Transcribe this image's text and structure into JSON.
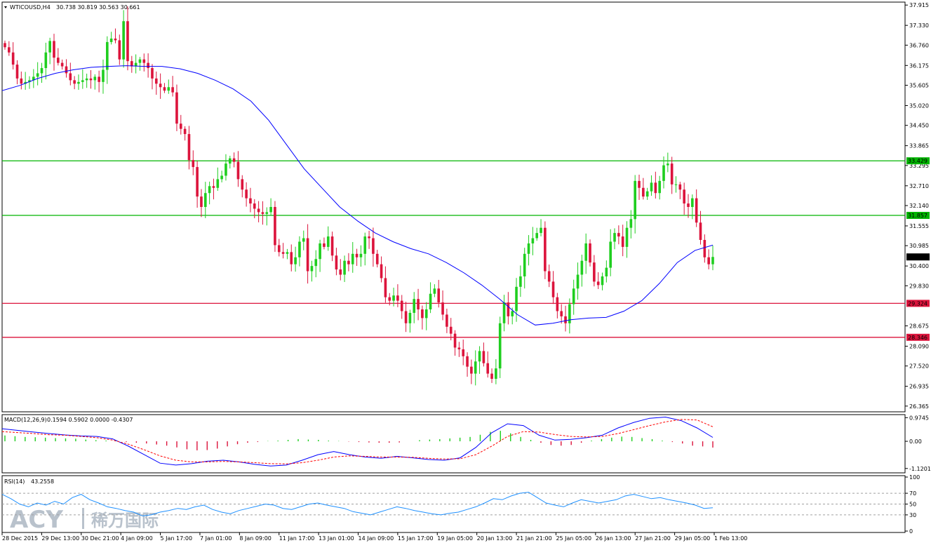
{
  "colors": {
    "bull": "#1fce1f",
    "bear": "#dc143c",
    "ma": "#0000ff",
    "support": "#dc143c",
    "resistance": "#00b400",
    "macd_signal": "#ff0000",
    "watermark": "#b9c2cc"
  },
  "chart_data": [
    {
      "type": "candlestick",
      "title": "WTICOUSD,H4",
      "ohlc_readout": [
        "30.738",
        "30.819",
        "30.563",
        "30.661"
      ],
      "current_price": "30.661",
      "ylim": [
        26.2,
        38.0
      ],
      "y_ticks": [
        "37.915",
        "37.330",
        "36.760",
        "36.175",
        "35.605",
        "35.020",
        "34.450",
        "33.865",
        "33.295",
        "32.710",
        "32.140",
        "31.555",
        "30.985",
        "30.400",
        "29.830",
        "28.675",
        "28.090",
        "27.520",
        "26.935",
        "26.365"
      ],
      "x_labels": [
        "28 Dec 2015",
        "29 Dec 13:00",
        "30 Dec 21:00",
        "4 Jan 09:00",
        "5 Jan 17:00",
        "7 Jan 01:00",
        "8 Jan 09:00",
        "11 Jan 17:00",
        "13 Jan 01:00",
        "14 Jan 09:00",
        "15 Jan 17:00",
        "19 Jan 05:00",
        "20 Jan 13:00",
        "21 Jan 21:00",
        "25 Jan 05:00",
        "26 Jan 13:00",
        "27 Jan 21:00",
        "29 Jan 05:00",
        "1 Feb 13:00"
      ],
      "levels": [
        {
          "value": 33.429,
          "label": "33.429",
          "role": "resistance"
        },
        {
          "value": 31.857,
          "label": "31.857",
          "role": "resistance"
        },
        {
          "value": 29.324,
          "label": "29.324",
          "role": "support"
        },
        {
          "value": 28.346,
          "label": "28.346",
          "role": "support"
        }
      ],
      "candles_close": [
        36.7,
        36.55,
        36.2,
        35.8,
        35.65,
        35.7,
        35.75,
        35.85,
        35.95,
        36.1,
        36.55,
        36.88,
        36.4,
        36.25,
        36.15,
        35.95,
        35.75,
        35.65,
        35.7,
        35.75,
        35.8,
        35.75,
        35.85,
        35.7,
        36.05,
        36.85,
        36.95,
        36.9,
        36.35,
        37.45,
        36.3,
        36.15,
        36.25,
        36.35,
        36.25,
        36.1,
        35.8,
        35.65,
        35.55,
        35.45,
        35.55,
        35.4,
        34.5,
        34.35,
        34.2,
        33.45,
        33.25,
        32.4,
        32.1,
        32.5,
        32.7,
        32.65,
        32.9,
        33.0,
        33.35,
        33.5,
        33.4,
        32.9,
        32.6,
        32.35,
        32.2,
        32.05,
        31.95,
        31.9,
        31.95,
        32.1,
        31.0,
        30.8,
        30.75,
        30.8,
        30.45,
        30.65,
        31.1,
        31.2,
        30.25,
        30.4,
        30.6,
        31.05,
        30.95,
        31.25,
        30.7,
        30.3,
        30.15,
        30.55,
        30.45,
        30.75,
        30.65,
        30.75,
        31.25,
        31.2,
        30.75,
        30.45,
        30.05,
        29.5,
        29.4,
        29.55,
        29.4,
        29.1,
        28.75,
        29.05,
        29.45,
        29.15,
        28.9,
        29.15,
        29.6,
        29.75,
        29.35,
        29.0,
        28.65,
        28.45,
        28.05,
        28.0,
        27.8,
        27.5,
        27.3,
        27.65,
        27.95,
        27.6,
        27.3,
        27.15,
        27.45,
        28.75,
        29.35,
        28.95,
        29.1,
        29.8,
        30.1,
        30.75,
        31.05,
        31.2,
        31.35,
        31.5,
        30.25,
        29.95,
        29.5,
        29.1,
        28.95,
        28.75,
        29.3,
        29.75,
        30.15,
        30.55,
        31.05,
        30.5,
        29.95,
        29.85,
        30.1,
        30.35,
        31.1,
        31.35,
        31.25,
        30.95,
        31.5,
        31.75,
        32.85,
        32.65,
        32.4,
        32.55,
        32.8,
        32.5,
        32.85,
        33.3,
        33.35,
        32.75,
        32.75,
        32.6,
        32.2,
        32.1,
        32.35,
        31.65,
        31.15,
        30.65,
        30.45,
        30.66
      ],
      "ma_line": [
        35.45,
        35.6,
        35.8,
        35.95,
        36.05,
        36.12,
        36.15,
        36.17,
        36.15,
        36.15,
        36.08,
        35.95,
        35.75,
        35.5,
        35.15,
        34.6,
        33.9,
        33.2,
        32.65,
        32.1,
        31.7,
        31.35,
        31.1,
        30.9,
        30.75,
        30.5,
        30.2,
        29.85,
        29.45,
        29.0,
        28.7,
        28.75,
        28.85,
        28.9,
        28.92,
        29.1,
        29.4,
        29.9,
        30.5,
        30.85,
        31.0
      ],
      "ma_period": "",
      "ohlc_note": ""
    },
    {
      "type": "line",
      "title": "MACD(12,26,9)",
      "readout": [
        "0.1594",
        "0.5902",
        "0.0000",
        "-0.4307"
      ],
      "ylim": [
        -1.3,
        1.1
      ],
      "y_ticks": [
        "0.9745",
        "0.00",
        "-1.1201"
      ],
      "histogram": [
        0.4,
        0.35,
        0.3,
        0.28,
        0.25,
        0.22,
        0.2,
        0.18,
        0.12,
        0.08,
        0.05,
        0.02,
        -0.05,
        -0.1,
        -0.15,
        -0.22,
        -0.3,
        -0.42,
        -0.55,
        -0.62,
        -0.6,
        -0.5,
        -0.35,
        -0.2,
        -0.1,
        -0.05,
        0.02,
        0.05,
        0.1,
        0.15,
        0.12,
        0.1,
        0.05,
        0.02,
        -0.02,
        -0.05,
        -0.08,
        -0.1,
        -0.1,
        -0.08,
        0.0,
        0.08,
        0.12,
        0.15,
        0.2,
        0.25,
        0.3,
        0.45,
        0.65,
        0.72,
        0.55,
        0.3,
        0.1,
        -0.1,
        -0.25,
        -0.3,
        -0.25,
        -0.1,
        0.05,
        0.15,
        0.25,
        0.32,
        0.3,
        0.22,
        0.15,
        0.05,
        -0.05,
        -0.15,
        -0.3,
        -0.35,
        -0.43
      ],
      "macd_line": [
        0.52,
        0.45,
        0.38,
        0.32,
        0.26,
        0.22,
        0.2,
        0.1,
        -0.2,
        -0.55,
        -0.9,
        -0.98,
        -0.92,
        -0.82,
        -0.78,
        -0.85,
        -0.95,
        -1.02,
        -0.98,
        -0.78,
        -0.55,
        -0.42,
        -0.55,
        -0.65,
        -0.7,
        -0.62,
        -0.68,
        -0.75,
        -0.78,
        -0.68,
        -0.25,
        0.35,
        0.72,
        0.65,
        0.25,
        0.05,
        0.08,
        0.15,
        0.25,
        0.55,
        0.78,
        0.95,
        1.0,
        0.85,
        0.55,
        0.16
      ],
      "signal_line": [
        0.4,
        0.36,
        0.32,
        0.27,
        0.25,
        0.2,
        0.15,
        0.05,
        -0.12,
        -0.35,
        -0.6,
        -0.78,
        -0.85,
        -0.85,
        -0.83,
        -0.85,
        -0.88,
        -0.92,
        -0.93,
        -0.88,
        -0.78,
        -0.65,
        -0.6,
        -0.62,
        -0.65,
        -0.65,
        -0.66,
        -0.7,
        -0.73,
        -0.72,
        -0.55,
        -0.2,
        0.2,
        0.4,
        0.38,
        0.28,
        0.2,
        0.18,
        0.2,
        0.32,
        0.48,
        0.65,
        0.8,
        0.9,
        0.88,
        0.6
      ]
    },
    {
      "type": "line",
      "title": "RSI(14)",
      "readout": "43.2558",
      "ylim": [
        0,
        100
      ],
      "y_ticks": [
        "100",
        "70",
        "50",
        "30",
        "0"
      ],
      "values": [
        68,
        60,
        50,
        45,
        52,
        48,
        55,
        50,
        62,
        68,
        58,
        52,
        45,
        42,
        38,
        35,
        28,
        30,
        35,
        38,
        42,
        40,
        45,
        48,
        40,
        35,
        32,
        38,
        42,
        46,
        50,
        48,
        42,
        40,
        45,
        50,
        52,
        48,
        45,
        42,
        36,
        33,
        30,
        35,
        40,
        45,
        42,
        38,
        35,
        32,
        30,
        33,
        35,
        40,
        45,
        52,
        60,
        58,
        65,
        70,
        72,
        62,
        52,
        48,
        45,
        52,
        58,
        55,
        52,
        55,
        58,
        65,
        68,
        64,
        60,
        62,
        58,
        55,
        52,
        48,
        42,
        43.26
      ]
    }
  ],
  "watermark": {
    "latin": "ACY",
    "cjk": "稀万国际"
  }
}
